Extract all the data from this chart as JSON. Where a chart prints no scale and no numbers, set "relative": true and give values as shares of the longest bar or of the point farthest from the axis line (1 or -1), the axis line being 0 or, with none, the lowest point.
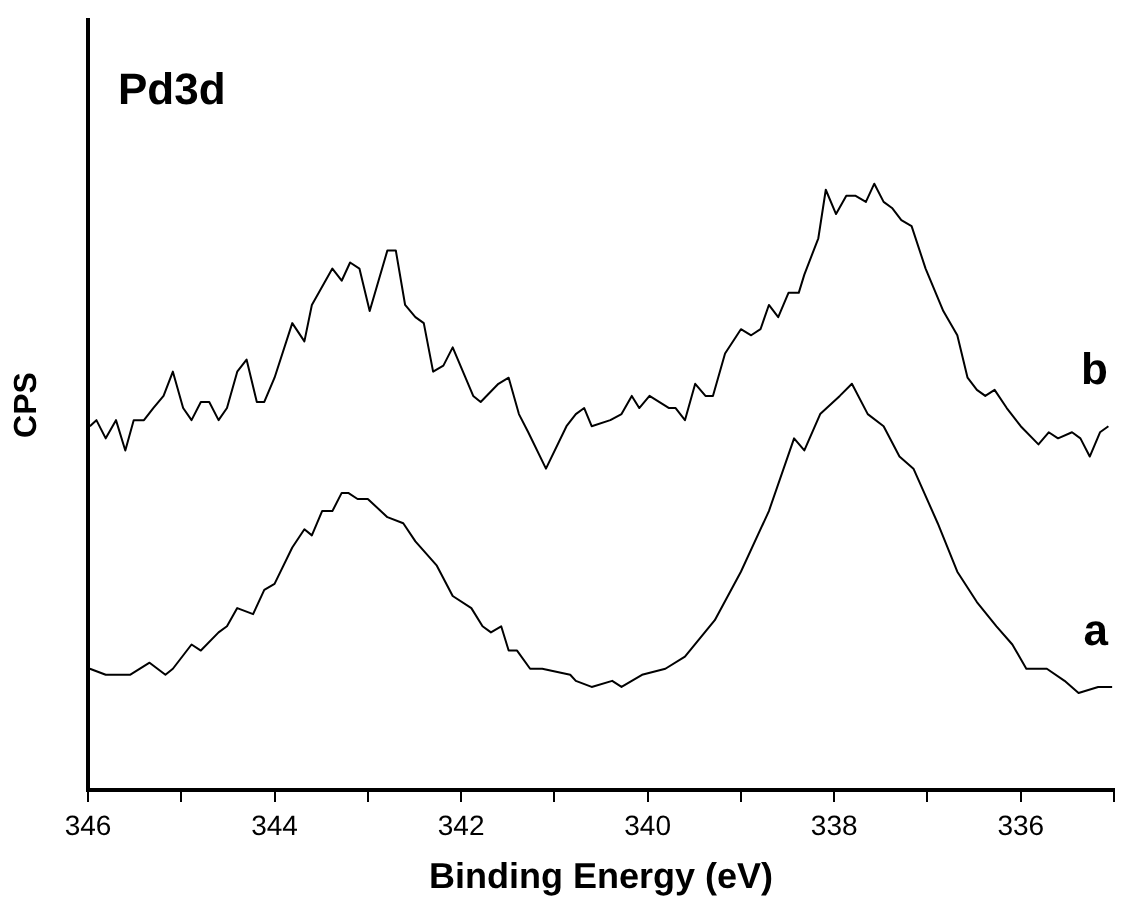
{
  "chart_data": {
    "type": "line",
    "title": "Pd3d",
    "xlabel": "Binding Energy (eV)",
    "ylabel": "CPS",
    "relative": true,
    "xlim": [
      346,
      335
    ],
    "xticks": [
      346,
      {
        "value": 345,
        "label": null
      },
      344,
      {
        "value": 343,
        "label": null
      },
      342,
      {
        "value": 341,
        "label": null
      },
      340,
      {
        "value": 339,
        "label": null
      },
      338,
      {
        "value": 337,
        "label": null
      },
      336,
      {
        "value": 335,
        "label": null
      }
    ],
    "grid": false,
    "legend": false,
    "marker": "none",
    "line_style": "solid",
    "series": [
      {
        "name": "b",
        "color": "#000000",
        "x": [
          345.98,
          345.91,
          345.81,
          345.7,
          345.6,
          345.51,
          345.4,
          345.3,
          345.19,
          345.09,
          344.98,
          344.89,
          344.79,
          344.7,
          344.6,
          344.51,
          344.4,
          344.3,
          344.19,
          344.11,
          344.0,
          343.81,
          343.68,
          343.6,
          343.38,
          343.28,
          343.19,
          343.09,
          342.98,
          342.79,
          342.7,
          342.6,
          342.49,
          342.4,
          342.3,
          342.19,
          342.09,
          341.87,
          341.79,
          341.6,
          341.49,
          341.38,
          341.28,
          341.09,
          340.87,
          340.77,
          340.68,
          340.6,
          340.4,
          340.28,
          340.17,
          340.09,
          339.98,
          339.77,
          339.7,
          339.6,
          339.49,
          339.38,
          339.3,
          339.17,
          339.0,
          338.89,
          338.79,
          338.7,
          338.6,
          338.49,
          338.38,
          338.32,
          338.17,
          338.09,
          337.98,
          337.87,
          337.77,
          337.66,
          337.57,
          337.47,
          337.38,
          337.28,
          337.17,
          337.02,
          336.83,
          336.68,
          336.57,
          336.47,
          336.38,
          336.28,
          336.15,
          336.0,
          335.81,
          335.7,
          335.6,
          335.45,
          335.36,
          335.26,
          335.15,
          335.06
        ],
        "values": [
          0.6,
          0.61,
          0.58,
          0.61,
          0.56,
          0.61,
          0.61,
          0.63,
          0.65,
          0.69,
          0.63,
          0.61,
          0.64,
          0.64,
          0.61,
          0.63,
          0.69,
          0.71,
          0.64,
          0.64,
          0.68,
          0.77,
          0.74,
          0.8,
          0.86,
          0.84,
          0.87,
          0.86,
          0.79,
          0.89,
          0.89,
          0.8,
          0.78,
          0.77,
          0.69,
          0.7,
          0.73,
          0.65,
          0.64,
          0.67,
          0.68,
          0.62,
          0.59,
          0.53,
          0.6,
          0.62,
          0.63,
          0.6,
          0.61,
          0.62,
          0.65,
          0.63,
          0.65,
          0.63,
          0.63,
          0.61,
          0.67,
          0.65,
          0.65,
          0.72,
          0.76,
          0.75,
          0.76,
          0.8,
          0.78,
          0.82,
          0.82,
          0.85,
          0.91,
          0.99,
          0.95,
          0.98,
          0.98,
          0.97,
          1,
          0.97,
          0.96,
          0.94,
          0.93,
          0.86,
          0.79,
          0.75,
          0.68,
          0.66,
          0.65,
          0.66,
          0.63,
          0.6,
          0.57,
          0.59,
          0.58,
          0.59,
          0.58,
          0.55,
          0.59,
          0.6
        ]
      },
      {
        "name": "a",
        "color": "#000000",
        "x": [
          345.98,
          345.81,
          345.7,
          345.55,
          345.34,
          345.17,
          345.09,
          344.89,
          344.79,
          344.6,
          344.51,
          344.4,
          344.23,
          344.11,
          344.0,
          343.81,
          343.68,
          343.6,
          343.49,
          343.38,
          343.28,
          343.21,
          343.11,
          343.0,
          342.79,
          342.62,
          342.49,
          342.26,
          342.09,
          341.89,
          341.77,
          341.68,
          341.57,
          341.49,
          341.4,
          341.26,
          341.13,
          340.83,
          340.77,
          340.6,
          340.38,
          340.28,
          340.06,
          339.81,
          339.6,
          339.28,
          339.0,
          338.7,
          338.43,
          338.32,
          338.15,
          337.94,
          337.81,
          337.64,
          337.47,
          337.3,
          337.15,
          336.89,
          336.68,
          336.47,
          336.26,
          336.09,
          335.94,
          335.72,
          335.53,
          335.38,
          335.17,
          335.02
        ],
        "values": [
          0.2,
          0.19,
          0.19,
          0.19,
          0.21,
          0.19,
          0.2,
          0.24,
          0.23,
          0.26,
          0.27,
          0.3,
          0.29,
          0.33,
          0.34,
          0.4,
          0.43,
          0.42,
          0.46,
          0.46,
          0.49,
          0.49,
          0.48,
          0.48,
          0.45,
          0.44,
          0.41,
          0.37,
          0.32,
          0.3,
          0.27,
          0.26,
          0.27,
          0.23,
          0.23,
          0.2,
          0.2,
          0.19,
          0.18,
          0.17,
          0.18,
          0.17,
          0.19,
          0.2,
          0.22,
          0.28,
          0.36,
          0.46,
          0.58,
          0.56,
          0.62,
          0.65,
          0.67,
          0.62,
          0.6,
          0.55,
          0.53,
          0.44,
          0.36,
          0.31,
          0.27,
          0.24,
          0.2,
          0.2,
          0.18,
          0.16,
          0.17,
          0.17
        ]
      }
    ]
  }
}
